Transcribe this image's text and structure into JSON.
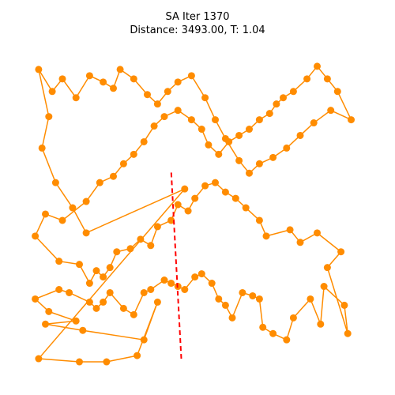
{
  "title_line1": "SA Iter 1370",
  "title_line2": "Distance: 3493.00, T: 1.04",
  "colors": {
    "route": "#ff8c00",
    "city": "#ff8c00",
    "highlight": "#ff0000",
    "background": "#ffffff"
  },
  "chart_data": {
    "type": "scatter",
    "title": "SA Iter 1370\nDistance: 3493.00, T: 1.04",
    "axes_visible": false,
    "grid": false,
    "xlim": [
      0,
      100
    ],
    "ylim": [
      0,
      100
    ],
    "cities": [
      [
        3,
        3
      ],
      [
        15,
        2
      ],
      [
        23,
        2
      ],
      [
        32,
        4
      ],
      [
        38,
        21
      ],
      [
        34,
        9
      ],
      [
        16,
        12
      ],
      [
        5,
        14
      ],
      [
        14,
        15
      ],
      [
        6,
        18
      ],
      [
        2,
        22
      ],
      [
        9,
        25
      ],
      [
        12,
        24
      ],
      [
        18,
        21
      ],
      [
        20,
        19
      ],
      [
        22,
        21
      ],
      [
        24,
        24
      ],
      [
        28,
        19
      ],
      [
        31,
        17
      ],
      [
        34,
        24
      ],
      [
        36,
        25
      ],
      [
        40,
        28
      ],
      [
        42,
        27
      ],
      [
        44,
        26
      ],
      [
        46,
        25
      ],
      [
        49,
        29
      ],
      [
        51,
        30
      ],
      [
        54,
        27
      ],
      [
        56,
        22
      ],
      [
        58,
        20
      ],
      [
        60,
        16
      ],
      [
        63,
        24
      ],
      [
        66,
        23
      ],
      [
        68,
        22
      ],
      [
        69,
        13
      ],
      [
        72,
        11
      ],
      [
        76,
        9
      ],
      [
        78,
        16
      ],
      [
        83,
        22
      ],
      [
        86,
        14
      ],
      [
        87,
        26
      ],
      [
        93,
        20
      ],
      [
        94,
        11
      ],
      [
        88,
        32
      ],
      [
        92,
        37
      ],
      [
        85,
        43
      ],
      [
        80,
        40
      ],
      [
        77,
        44
      ],
      [
        70,
        42
      ],
      [
        68,
        47
      ],
      [
        64,
        51
      ],
      [
        61,
        54
      ],
      [
        58,
        56
      ],
      [
        55,
        59
      ],
      [
        52,
        58
      ],
      [
        49,
        54
      ],
      [
        47,
        50
      ],
      [
        44,
        52
      ],
      [
        42,
        47
      ],
      [
        38,
        45
      ],
      [
        36,
        39
      ],
      [
        33,
        41
      ],
      [
        30,
        38
      ],
      [
        26,
        37
      ],
      [
        24,
        32
      ],
      [
        22,
        29
      ],
      [
        20,
        31
      ],
      [
        18,
        27
      ],
      [
        15,
        33
      ],
      [
        9,
        34
      ],
      [
        2,
        42
      ],
      [
        5,
        49
      ],
      [
        10,
        47
      ],
      [
        17,
        53
      ],
      [
        21,
        59
      ],
      [
        25,
        61
      ],
      [
        28,
        65
      ],
      [
        31,
        68
      ],
      [
        34,
        72
      ],
      [
        37,
        77
      ],
      [
        40,
        80
      ],
      [
        44,
        82
      ],
      [
        48,
        79
      ],
      [
        51,
        76
      ],
      [
        53,
        71
      ],
      [
        56,
        68
      ],
      [
        59,
        72
      ],
      [
        62,
        74
      ],
      [
        65,
        76
      ],
      [
        68,
        79
      ],
      [
        71,
        81
      ],
      [
        73,
        84
      ],
      [
        75,
        86
      ],
      [
        78,
        88
      ],
      [
        82,
        92
      ],
      [
        85,
        96
      ],
      [
        88,
        92
      ],
      [
        91,
        88
      ],
      [
        95,
        79
      ],
      [
        89,
        82
      ],
      [
        84,
        78
      ],
      [
        80,
        74
      ],
      [
        76,
        70
      ],
      [
        72,
        67
      ],
      [
        68,
        65
      ],
      [
        65,
        62
      ],
      [
        62,
        66
      ],
      [
        58,
        73
      ],
      [
        55,
        79
      ],
      [
        52,
        86
      ],
      [
        48,
        93
      ],
      [
        44,
        91
      ],
      [
        41,
        88
      ],
      [
        38,
        84
      ],
      [
        35,
        87
      ],
      [
        31,
        92
      ],
      [
        27,
        95
      ],
      [
        25,
        89
      ],
      [
        22,
        91
      ],
      [
        18,
        93
      ],
      [
        14,
        86
      ],
      [
        10,
        92
      ],
      [
        7,
        88
      ],
      [
        3,
        95
      ],
      [
        6,
        80
      ],
      [
        4,
        70
      ],
      [
        8,
        59
      ],
      [
        13,
        51
      ],
      [
        17,
        43
      ],
      [
        46,
        57
      ]
    ],
    "highlight_segment": [
      [
        45,
        3
      ],
      [
        42,
        63
      ]
    ]
  }
}
